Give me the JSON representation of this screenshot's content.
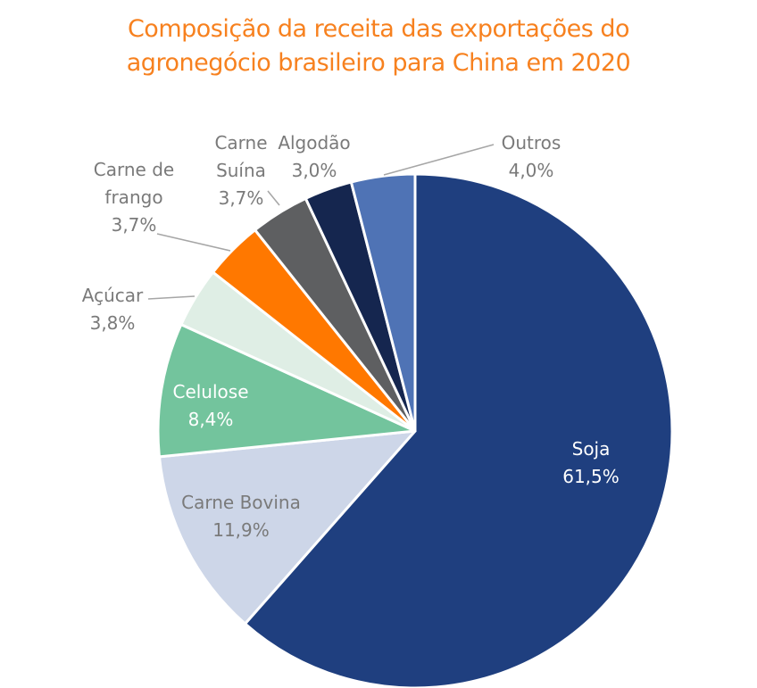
{
  "chart_data": {
    "type": "pie",
    "title_lines": [
      "Composição da receita das exportações do",
      "agronegócio brasileiro para China em 2020"
    ],
    "start": "top",
    "direction": "clockwise",
    "slices": [
      {
        "label": [
          "Soja"
        ],
        "value": 61.5,
        "value_label": "61,5%",
        "color": "#1f3f7f"
      },
      {
        "label": [
          "Carne Bovina"
        ],
        "value": 11.9,
        "value_label": "11,9%",
        "color": "#cdd6e8"
      },
      {
        "label": [
          "Celulose"
        ],
        "value": 8.4,
        "value_label": "8,4%",
        "color": "#73c49d"
      },
      {
        "label": [
          "Açúcar"
        ],
        "value": 3.8,
        "value_label": "3,8%",
        "color": "#dfeee5"
      },
      {
        "label": [
          "Carne de",
          "frango"
        ],
        "value": 3.7,
        "value_label": "3,7%",
        "color": "#ff7800"
      },
      {
        "label": [
          "Carne",
          "Suína"
        ],
        "value": 3.7,
        "value_label": "3,7%",
        "color": "#5e5f61"
      },
      {
        "label": [
          "Algodão"
        ],
        "value": 3.0,
        "value_label": "3,0%",
        "color": "#15264f"
      },
      {
        "label": [
          "Outros"
        ],
        "value": 4.0,
        "value_label": "4,0%",
        "color": "#4f73b5"
      }
    ]
  }
}
